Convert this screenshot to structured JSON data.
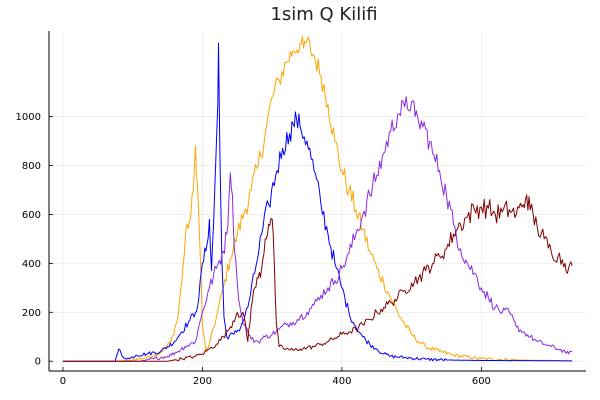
{
  "chart_data": {
    "type": "line",
    "title": "1sim Q Kilifi",
    "xlabel": "",
    "ylabel": "",
    "xlim": [
      -20,
      750
    ],
    "ylim": [
      -40,
      1350
    ],
    "xticks": [
      0,
      200,
      400,
      600
    ],
    "yticks": [
      0,
      200,
      400,
      600,
      800,
      1000
    ],
    "grid": true,
    "legend": "none",
    "series": [
      {
        "color": "#FFA500",
        "points": [
          [
            0,
            0
          ],
          [
            80,
            0
          ],
          [
            100,
            5
          ],
          [
            120,
            15
          ],
          [
            140,
            35
          ],
          [
            155,
            80
          ],
          [
            165,
            180
          ],
          [
            172,
            380
          ],
          [
            178,
            560
          ],
          [
            183,
            580
          ],
          [
            187,
            700
          ],
          [
            190,
            880
          ],
          [
            193,
            720
          ],
          [
            197,
            430
          ],
          [
            200,
            150
          ],
          [
            205,
            40
          ],
          [
            210,
            70
          ],
          [
            220,
            180
          ],
          [
            230,
            300
          ],
          [
            240,
            420
          ],
          [
            250,
            520
          ],
          [
            260,
            610
          ],
          [
            270,
            700
          ],
          [
            280,
            800
          ],
          [
            290,
            930
          ],
          [
            300,
            1080
          ],
          [
            310,
            1150
          ],
          [
            320,
            1220
          ],
          [
            330,
            1270
          ],
          [
            340,
            1300
          ],
          [
            345,
            1280
          ],
          [
            350,
            1310
          ],
          [
            355,
            1270
          ],
          [
            360,
            1250
          ],
          [
            370,
            1170
          ],
          [
            380,
            1050
          ],
          [
            390,
            900
          ],
          [
            400,
            780
          ],
          [
            410,
            700
          ],
          [
            420,
            620
          ],
          [
            430,
            540
          ],
          [
            440,
            450
          ],
          [
            450,
            380
          ],
          [
            460,
            320
          ],
          [
            470,
            260
          ],
          [
            480,
            200
          ],
          [
            490,
            150
          ],
          [
            500,
            110
          ],
          [
            510,
            80
          ],
          [
            520,
            60
          ],
          [
            540,
            40
          ],
          [
            560,
            25
          ],
          [
            600,
            10
          ],
          [
            650,
            5
          ],
          [
            700,
            3
          ],
          [
            730,
            2
          ]
        ]
      },
      {
        "color": "#0000FF",
        "points": [
          [
            0,
            0
          ],
          [
            75,
            0
          ],
          [
            80,
            50
          ],
          [
            85,
            20
          ],
          [
            95,
            10
          ],
          [
            105,
            25
          ],
          [
            120,
            30
          ],
          [
            140,
            40
          ],
          [
            160,
            80
          ],
          [
            170,
            120
          ],
          [
            180,
            160
          ],
          [
            190,
            200
          ],
          [
            195,
            260
          ],
          [
            200,
            400
          ],
          [
            205,
            450
          ],
          [
            210,
            580
          ],
          [
            213,
            370
          ],
          [
            216,
            560
          ],
          [
            219,
            810
          ],
          [
            222,
            1050
          ],
          [
            223,
            1300
          ],
          [
            225,
            850
          ],
          [
            228,
            400
          ],
          [
            231,
            180
          ],
          [
            235,
            100
          ],
          [
            245,
            110
          ],
          [
            255,
            140
          ],
          [
            265,
            220
          ],
          [
            275,
            360
          ],
          [
            285,
            520
          ],
          [
            295,
            640
          ],
          [
            305,
            760
          ],
          [
            315,
            870
          ],
          [
            325,
            930
          ],
          [
            330,
            970
          ],
          [
            335,
            990
          ],
          [
            340,
            960
          ],
          [
            350,
            900
          ],
          [
            360,
            780
          ],
          [
            370,
            640
          ],
          [
            380,
            520
          ],
          [
            390,
            400
          ],
          [
            400,
            300
          ],
          [
            410,
            200
          ],
          [
            420,
            140
          ],
          [
            430,
            100
          ],
          [
            440,
            70
          ],
          [
            450,
            50
          ],
          [
            460,
            30
          ],
          [
            470,
            20
          ],
          [
            490,
            15
          ],
          [
            520,
            8
          ],
          [
            550,
            5
          ],
          [
            600,
            3
          ],
          [
            700,
            2
          ],
          [
            730,
            1
          ]
        ]
      },
      {
        "color": "#8A2BE2",
        "points": [
          [
            0,
            0
          ],
          [
            90,
            0
          ],
          [
            110,
            0
          ],
          [
            130,
            10
          ],
          [
            150,
            20
          ],
          [
            165,
            40
          ],
          [
            175,
            60
          ],
          [
            190,
            80
          ],
          [
            200,
            200
          ],
          [
            210,
            300
          ],
          [
            220,
            380
          ],
          [
            230,
            450
          ],
          [
            235,
            520
          ],
          [
            238,
            660
          ],
          [
            240,
            770
          ],
          [
            243,
            680
          ],
          [
            246,
            450
          ],
          [
            250,
            320
          ],
          [
            255,
            200
          ],
          [
            260,
            150
          ],
          [
            270,
            90
          ],
          [
            280,
            80
          ],
          [
            290,
            100
          ],
          [
            300,
            110
          ],
          [
            310,
            130
          ],
          [
            320,
            150
          ],
          [
            330,
            160
          ],
          [
            340,
            180
          ],
          [
            350,
            200
          ],
          [
            360,
            230
          ],
          [
            370,
            270
          ],
          [
            380,
            300
          ],
          [
            390,
            330
          ],
          [
            400,
            380
          ],
          [
            410,
            440
          ],
          [
            420,
            520
          ],
          [
            430,
            600
          ],
          [
            440,
            680
          ],
          [
            450,
            760
          ],
          [
            460,
            850
          ],
          [
            470,
            940
          ],
          [
            480,
            1010
          ],
          [
            490,
            1040
          ],
          [
            500,
            1060
          ],
          [
            505,
            1000
          ],
          [
            510,
            980
          ],
          [
            520,
            950
          ],
          [
            530,
            850
          ],
          [
            540,
            780
          ],
          [
            550,
            680
          ],
          [
            560,
            560
          ],
          [
            570,
            460
          ],
          [
            580,
            400
          ],
          [
            590,
            360
          ],
          [
            600,
            300
          ],
          [
            610,
            260
          ],
          [
            620,
            220
          ],
          [
            630,
            200
          ],
          [
            640,
            200
          ],
          [
            650,
            140
          ],
          [
            660,
            120
          ],
          [
            670,
            100
          ],
          [
            680,
            80
          ],
          [
            690,
            70
          ],
          [
            700,
            60
          ],
          [
            710,
            50
          ],
          [
            720,
            40
          ],
          [
            725,
            30
          ],
          [
            730,
            40
          ]
        ]
      },
      {
        "color": "#800000",
        "points": [
          [
            0,
            0
          ],
          [
            150,
            0
          ],
          [
            170,
            10
          ],
          [
            190,
            20
          ],
          [
            200,
            30
          ],
          [
            210,
            50
          ],
          [
            220,
            70
          ],
          [
            230,
            100
          ],
          [
            240,
            140
          ],
          [
            250,
            200
          ],
          [
            260,
            180
          ],
          [
            265,
            80
          ],
          [
            270,
            220
          ],
          [
            275,
            300
          ],
          [
            280,
            340
          ],
          [
            285,
            380
          ],
          [
            290,
            500
          ],
          [
            295,
            560
          ],
          [
            300,
            580
          ],
          [
            303,
            400
          ],
          [
            306,
            150
          ],
          [
            310,
            60
          ],
          [
            320,
            50
          ],
          [
            330,
            45
          ],
          [
            340,
            50
          ],
          [
            350,
            55
          ],
          [
            360,
            60
          ],
          [
            370,
            70
          ],
          [
            380,
            80
          ],
          [
            390,
            95
          ],
          [
            400,
            110
          ],
          [
            410,
            120
          ],
          [
            420,
            130
          ],
          [
            430,
            150
          ],
          [
            440,
            170
          ],
          [
            450,
            200
          ],
          [
            460,
            220
          ],
          [
            470,
            240
          ],
          [
            480,
            260
          ],
          [
            490,
            290
          ],
          [
            500,
            320
          ],
          [
            510,
            340
          ],
          [
            520,
            370
          ],
          [
            530,
            400
          ],
          [
            540,
            430
          ],
          [
            550,
            460
          ],
          [
            560,
            520
          ],
          [
            570,
            560
          ],
          [
            580,
            590
          ],
          [
            590,
            620
          ],
          [
            600,
            630
          ],
          [
            610,
            625
          ],
          [
            620,
            600
          ],
          [
            630,
            610
          ],
          [
            640,
            620
          ],
          [
            650,
            600
          ],
          [
            660,
            640
          ],
          [
            665,
            680
          ],
          [
            670,
            620
          ],
          [
            680,
            550
          ],
          [
            690,
            500
          ],
          [
            700,
            450
          ],
          [
            710,
            430
          ],
          [
            720,
            400
          ],
          [
            725,
            380
          ],
          [
            730,
            390
          ]
        ]
      }
    ]
  }
}
